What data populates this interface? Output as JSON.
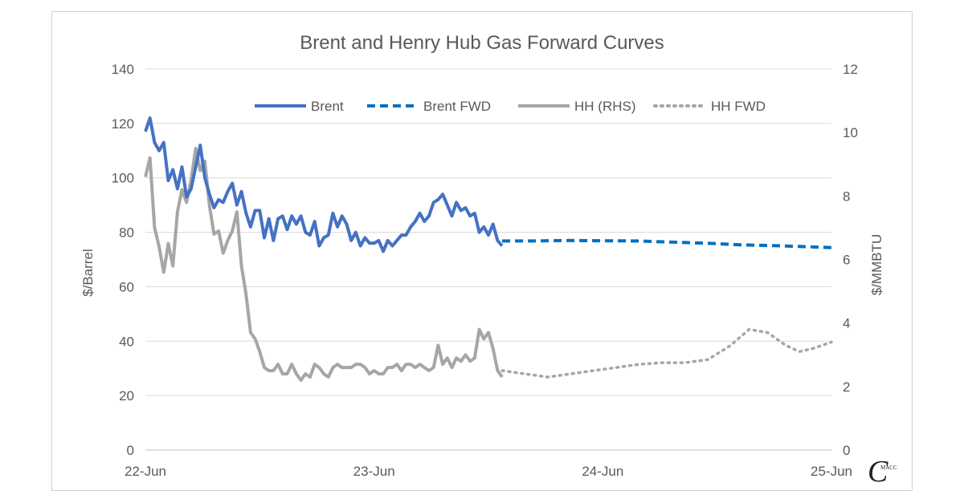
{
  "chart_data": {
    "type": "line",
    "title": "Brent and Henry Hub Gas Forward Curves",
    "ylabel": "$/Barrel",
    "y2label": "$/MMBTU",
    "ylim": [
      0,
      140
    ],
    "yticks": [
      0,
      20,
      40,
      60,
      80,
      100,
      120,
      140
    ],
    "y2lim": [
      0,
      12
    ],
    "y2ticks": [
      0,
      2,
      4,
      6,
      8,
      10,
      12
    ],
    "xlim": [
      2022.0,
      2025.0
    ],
    "xticks": [
      {
        "x": 2022.0,
        "label": "22-Jun"
      },
      {
        "x": 2023.0,
        "label": "23-Jun"
      },
      {
        "x": 2024.0,
        "label": "24-Jun"
      },
      {
        "x": 2025.0,
        "label": "25-Jun"
      }
    ],
    "grid": "horizontal",
    "legend_position": "top",
    "series": [
      {
        "name": "Brent",
        "axis": "left",
        "style": "solid",
        "color": "#4472C4",
        "x": [
          2022.0,
          2022.02,
          2022.04,
          2022.06,
          2022.08,
          2022.1,
          2022.12,
          2022.14,
          2022.16,
          2022.18,
          2022.2,
          2022.22,
          2022.24,
          2022.26,
          2022.28,
          2022.3,
          2022.32,
          2022.34,
          2022.36,
          2022.38,
          2022.4,
          2022.42,
          2022.44,
          2022.46,
          2022.48,
          2022.5,
          2022.52,
          2022.54,
          2022.56,
          2022.58,
          2022.6,
          2022.62,
          2022.64,
          2022.66,
          2022.68,
          2022.7,
          2022.72,
          2022.74,
          2022.76,
          2022.78,
          2022.8,
          2022.82,
          2022.84,
          2022.86,
          2022.88,
          2022.9,
          2022.92,
          2022.94,
          2022.96,
          2022.98,
          2023.0,
          2023.02,
          2023.04,
          2023.06,
          2023.08,
          2023.1,
          2023.12,
          2023.14,
          2023.16,
          2023.18,
          2023.2,
          2023.22,
          2023.24,
          2023.26,
          2023.28,
          2023.3,
          2023.32,
          2023.34,
          2023.36,
          2023.38,
          2023.4,
          2023.42,
          2023.44,
          2023.46,
          2023.48,
          2023.5,
          2023.52,
          2023.54,
          2023.56
        ],
        "y": [
          117,
          122,
          113,
          110,
          113,
          99,
          103,
          96,
          104,
          93,
          96,
          104,
          112,
          100,
          94,
          89,
          92,
          91,
          95,
          98,
          90,
          95,
          87,
          82,
          88,
          88,
          78,
          85,
          77,
          85,
          86,
          81,
          86,
          83,
          86,
          80,
          79,
          84,
          75,
          78,
          79,
          87,
          82,
          86,
          83,
          77,
          80,
          75,
          78,
          76,
          76,
          77,
          73,
          77,
          75,
          77,
          79,
          79,
          82,
          84,
          87,
          84,
          86,
          91,
          92,
          94,
          90,
          86,
          91,
          88,
          89,
          86,
          87,
          80,
          82,
          79,
          83,
          77,
          75
        ]
      },
      {
        "name": "Brent FWD",
        "axis": "left",
        "style": "dashed",
        "color": "#0070C0",
        "x": [
          2023.56,
          2023.7,
          2023.85,
          2024.0,
          2024.15,
          2024.3,
          2024.45,
          2024.6,
          2024.75,
          2024.9,
          2025.0
        ],
        "y": [
          76.8,
          76.8,
          77.0,
          76.9,
          76.8,
          76.4,
          76.0,
          75.4,
          75.1,
          74.7,
          74.4
        ]
      },
      {
        "name": "HH (RHS)",
        "axis": "right",
        "style": "solid",
        "color": "#A6A6A6",
        "x": [
          2022.0,
          2022.02,
          2022.04,
          2022.06,
          2022.08,
          2022.1,
          2022.12,
          2022.14,
          2022.16,
          2022.18,
          2022.2,
          2022.22,
          2022.24,
          2022.26,
          2022.28,
          2022.3,
          2022.32,
          2022.34,
          2022.36,
          2022.38,
          2022.4,
          2022.42,
          2022.44,
          2022.46,
          2022.48,
          2022.5,
          2022.52,
          2022.54,
          2022.56,
          2022.58,
          2022.6,
          2022.62,
          2022.64,
          2022.66,
          2022.68,
          2022.7,
          2022.72,
          2022.74,
          2022.76,
          2022.78,
          2022.8,
          2022.82,
          2022.84,
          2022.86,
          2022.88,
          2022.9,
          2022.92,
          2022.94,
          2022.96,
          2022.98,
          2023.0,
          2023.02,
          2023.04,
          2023.06,
          2023.08,
          2023.1,
          2023.12,
          2023.14,
          2023.16,
          2023.18,
          2023.2,
          2023.22,
          2023.24,
          2023.26,
          2023.28,
          2023.3,
          2023.32,
          2023.34,
          2023.36,
          2023.38,
          2023.4,
          2023.42,
          2023.44,
          2023.46,
          2023.48,
          2023.5,
          2023.52,
          2023.54,
          2023.56
        ],
        "y": [
          8.6,
          9.2,
          7.0,
          6.4,
          5.6,
          6.5,
          5.8,
          7.5,
          8.2,
          7.8,
          8.5,
          9.5,
          8.8,
          9.1,
          7.7,
          6.8,
          6.9,
          6.2,
          6.6,
          6.9,
          7.5,
          5.8,
          4.9,
          3.7,
          3.5,
          3.1,
          2.6,
          2.5,
          2.5,
          2.7,
          2.4,
          2.4,
          2.7,
          2.4,
          2.2,
          2.4,
          2.3,
          2.7,
          2.6,
          2.4,
          2.3,
          2.6,
          2.7,
          2.6,
          2.6,
          2.6,
          2.7,
          2.7,
          2.6,
          2.4,
          2.5,
          2.4,
          2.4,
          2.6,
          2.6,
          2.7,
          2.5,
          2.7,
          2.7,
          2.6,
          2.7,
          2.6,
          2.5,
          2.6,
          3.3,
          2.7,
          2.9,
          2.6,
          2.9,
          2.8,
          3.0,
          2.8,
          2.9,
          3.8,
          3.5,
          3.7,
          3.2,
          2.5,
          2.3
        ]
      },
      {
        "name": "HH FWD",
        "axis": "right",
        "style": "dotted",
        "color": "#A6A6A6",
        "x": [
          2023.56,
          2023.66,
          2023.76,
          2023.86,
          2023.96,
          2024.06,
          2024.16,
          2024.26,
          2024.36,
          2024.46,
          2024.56,
          2024.64,
          2024.72,
          2024.8,
          2024.86,
          2024.92,
          2024.96,
          2025.0
        ],
        "y": [
          2.5,
          2.4,
          2.3,
          2.4,
          2.5,
          2.6,
          2.7,
          2.75,
          2.75,
          2.85,
          3.3,
          3.8,
          3.7,
          3.3,
          3.1,
          3.2,
          3.3,
          3.4
        ]
      }
    ]
  },
  "watermark": "C MACC"
}
